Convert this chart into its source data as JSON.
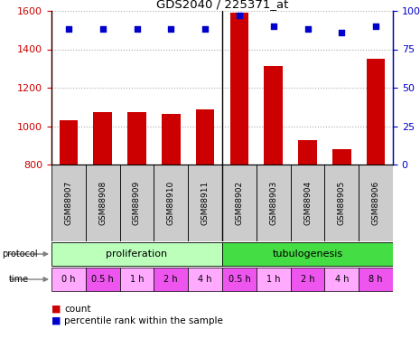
{
  "title": "GDS2040 / 225371_at",
  "samples": [
    "GSM88907",
    "GSM88908",
    "GSM88909",
    "GSM88910",
    "GSM88911",
    "GSM88902",
    "GSM88903",
    "GSM88904",
    "GSM88905",
    "GSM88906"
  ],
  "counts": [
    1030,
    1075,
    1075,
    1065,
    1085,
    1590,
    1315,
    925,
    880,
    1350
  ],
  "pct_vals": [
    88,
    88,
    88,
    88,
    88,
    97,
    90,
    88,
    86,
    90
  ],
  "bar_color": "#cc0000",
  "dot_color": "#0000cc",
  "ylim_left": [
    800,
    1600
  ],
  "ylim_right": [
    0,
    100
  ],
  "yticks_left": [
    800,
    1000,
    1200,
    1400,
    1600
  ],
  "yticks_right": [
    0,
    25,
    50,
    75,
    100
  ],
  "protocol_labels": [
    "proliferation",
    "tubulogenesis"
  ],
  "protocol_colors": [
    "#bbffbb",
    "#44dd44"
  ],
  "time_labels": [
    "0 h",
    "0.5 h",
    "1 h",
    "2 h",
    "4 h",
    "0.5 h",
    "1 h",
    "2 h",
    "4 h",
    "8 h"
  ],
  "time_colors": [
    "#ffaaff",
    "#ee55ee",
    "#ffaaff",
    "#ee55ee",
    "#ffaaff",
    "#ee55ee",
    "#ffaaff",
    "#ee55ee",
    "#ffaaff",
    "#ee55ee"
  ],
  "sample_bg_color": "#cccccc",
  "legend_count_color": "#cc0000",
  "legend_dot_color": "#0000cc"
}
